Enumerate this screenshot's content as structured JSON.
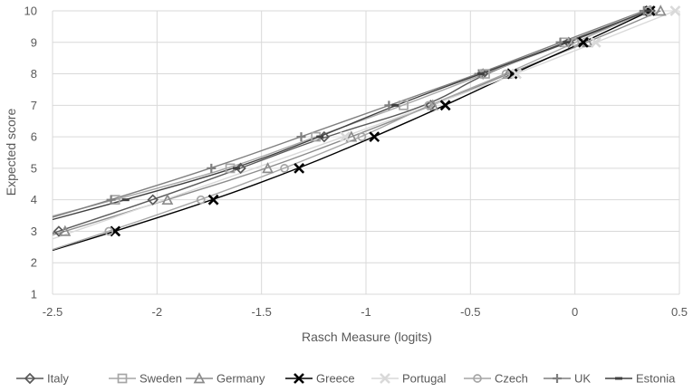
{
  "chart_data": {
    "type": "line",
    "title": "",
    "xlabel": "Rasch Measure (logits)",
    "ylabel": "Expected score",
    "xlim": [
      -2.5,
      0.5
    ],
    "ylim": [
      1,
      10
    ],
    "x_ticks": [
      "-2.5",
      "-2",
      "-1.5",
      "-1",
      "-0.5",
      "0",
      "0.5"
    ],
    "y_ticks": [
      "1",
      "2",
      "3",
      "4",
      "5",
      "6",
      "7",
      "8",
      "9",
      "10"
    ],
    "grid": true,
    "legend_position": "bottom",
    "series": [
      {
        "name": "Italy",
        "marker": "diamond",
        "color": "#595959",
        "points": [
          [
            -2.47,
            3
          ],
          [
            -2.02,
            4
          ],
          [
            -1.6,
            5
          ],
          [
            -1.2,
            6
          ],
          [
            -0.69,
            7
          ],
          [
            -0.44,
            8
          ],
          [
            -0.03,
            9
          ],
          [
            0.36,
            10
          ]
        ]
      },
      {
        "name": "Sweden",
        "marker": "square",
        "color": "#a6a6a6",
        "points": [
          [
            -2.2,
            4
          ],
          [
            -1.65,
            5
          ],
          [
            -1.24,
            6
          ],
          [
            -0.82,
            7
          ],
          [
            -0.43,
            8
          ],
          [
            -0.05,
            9
          ],
          [
            0.35,
            10
          ]
        ]
      },
      {
        "name": "Germany",
        "marker": "triangle",
        "color": "#8c8c8c",
        "points": [
          [
            -2.44,
            3
          ],
          [
            -1.95,
            4
          ],
          [
            -1.47,
            5
          ],
          [
            -1.07,
            6
          ],
          [
            -0.68,
            7
          ],
          [
            -0.32,
            8
          ],
          [
            0.06,
            9
          ],
          [
            0.41,
            10
          ]
        ]
      },
      {
        "name": "Greece",
        "marker": "x",
        "color": "#000000",
        "points": [
          [
            -2.2,
            3
          ],
          [
            -1.73,
            4
          ],
          [
            -1.32,
            5
          ],
          [
            -0.96,
            6
          ],
          [
            -0.62,
            7
          ],
          [
            -0.3,
            8
          ],
          [
            0.04,
            9
          ],
          [
            0.36,
            10
          ]
        ]
      },
      {
        "name": "Portugal",
        "marker": "x",
        "color": "#d9d9d9",
        "points": [
          [
            -1.1,
            6
          ],
          [
            -0.28,
            8
          ],
          [
            0.1,
            9
          ],
          [
            0.48,
            10
          ]
        ]
      },
      {
        "name": "Czech",
        "marker": "circle",
        "color": "#a6a6a6",
        "points": [
          [
            -2.23,
            3
          ],
          [
            -1.79,
            4
          ],
          [
            -1.39,
            5
          ],
          [
            -1.02,
            6
          ],
          [
            -0.7,
            7
          ],
          [
            -0.33,
            8
          ],
          [
            0.0,
            9
          ],
          [
            0.35,
            10
          ]
        ]
      },
      {
        "name": "UK",
        "marker": "plus",
        "color": "#7f7f7f",
        "points": [
          [
            -2.22,
            4
          ],
          [
            -1.74,
            5
          ],
          [
            -1.31,
            6
          ],
          [
            -0.89,
            7
          ],
          [
            -0.46,
            8
          ],
          [
            -0.07,
            9
          ],
          [
            0.33,
            10
          ]
        ]
      },
      {
        "name": "Estonia",
        "marker": "dash",
        "color": "#404040",
        "points": [
          [
            -2.15,
            4
          ],
          [
            -1.62,
            5
          ],
          [
            -1.22,
            6
          ],
          [
            -0.86,
            7
          ],
          [
            -0.45,
            8
          ],
          [
            -0.04,
            9
          ],
          [
            0.35,
            10
          ]
        ]
      }
    ]
  }
}
